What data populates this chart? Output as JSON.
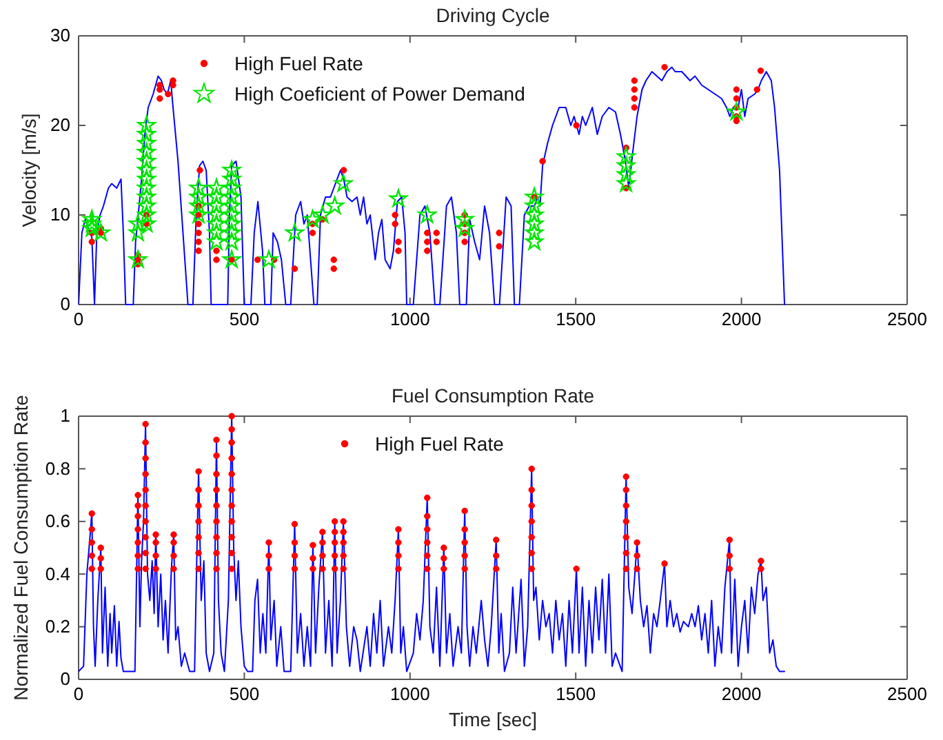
{
  "chart_data": [
    {
      "type": "line",
      "title": "Driving Cycle",
      "ylabel": "Velocity [m/s]",
      "xlim": [
        0,
        2500
      ],
      "xticks": [
        0,
        500,
        1000,
        1500,
        2000,
        2500
      ],
      "ylim": [
        0,
        30
      ],
      "yticks": [
        0,
        10,
        20,
        30
      ],
      "grid": false,
      "legend": "top",
      "series": [
        {
          "color": "#0000ff",
          "x": [
            0,
            10,
            20,
            30,
            40,
            48,
            55,
            65,
            75,
            90,
            100,
            115,
            128,
            135,
            142,
            165,
            172,
            180,
            190,
            200,
            210,
            225,
            240,
            250,
            258,
            268,
            278,
            285,
            300,
            330,
            345,
            355,
            365,
            375,
            385,
            395,
            400,
            450,
            455,
            462,
            475,
            490,
            500,
            520,
            530,
            541,
            555,
            562,
            580,
            587,
            600,
            612,
            625,
            640,
            655,
            670,
            680,
            690,
            700,
            710,
            720,
            730,
            745,
            760,
            775,
            790,
            800,
            810,
            825,
            840,
            850,
            860,
            870,
            880,
            895,
            905,
            915,
            925,
            940,
            950,
            962,
            975,
            985,
            990,
            1010,
            1030,
            1045,
            1060,
            1075,
            1090,
            1110,
            1125,
            1140,
            1150,
            1170,
            1180,
            1195,
            1210,
            1225,
            1240,
            1255,
            1270,
            1290,
            1305,
            1315,
            1330,
            1345,
            1360,
            1375,
            1385,
            1392,
            1400,
            1415,
            1430,
            1450,
            1470,
            1485,
            1495,
            1510,
            1520,
            1530,
            1540,
            1550,
            1565,
            1580,
            1600,
            1620,
            1635,
            1650,
            1660,
            1672,
            1685,
            1700,
            1712,
            1730,
            1745,
            1760,
            1775,
            1790,
            1800,
            1820,
            1845,
            1860,
            1880,
            1900,
            1920,
            1940,
            1955,
            1965,
            1975,
            1990,
            2000,
            2010,
            2020,
            2040,
            2050,
            2060,
            2075,
            2090,
            2100,
            2115,
            2125,
            2130
          ],
          "values": [
            0,
            8,
            9.5,
            8.5,
            7.5,
            0,
            8,
            10,
            11,
            13,
            13.5,
            13,
            14,
            8,
            0,
            0,
            7,
            10,
            14,
            19,
            22,
            23.5,
            25.5,
            25,
            24,
            23.5,
            25,
            22,
            16,
            0,
            0,
            10,
            15.5,
            16,
            15,
            8,
            0,
            0,
            10,
            15.5,
            16,
            12,
            0,
            0,
            8,
            11.5,
            6,
            0,
            0,
            8,
            7,
            5,
            0,
            0,
            10,
            11.5,
            9,
            10,
            5,
            0,
            0,
            10,
            12,
            12,
            13.5,
            15,
            14,
            12,
            11.5,
            12,
            10,
            12,
            9,
            10,
            5,
            8,
            9.5,
            5,
            4,
            6,
            11.5,
            12,
            8,
            0,
            0,
            10,
            11,
            8,
            0,
            0,
            11,
            12,
            8,
            0,
            0,
            9.5,
            7,
            5,
            11,
            8,
            0,
            0,
            12,
            11,
            0,
            0,
            10,
            11,
            11,
            12,
            11,
            15.5,
            18,
            20,
            22,
            22,
            20,
            21,
            19,
            21,
            20,
            21,
            22,
            19,
            21,
            22,
            21.5,
            19,
            16,
            13,
            17,
            21,
            24,
            25,
            26,
            25.5,
            25,
            26,
            26.5,
            26,
            26,
            25,
            25.5,
            24.5,
            24,
            23.5,
            23,
            22,
            21,
            22,
            22,
            24,
            21,
            23,
            23.5,
            24,
            25,
            26,
            25,
            22,
            15,
            5,
            0
          ]
        },
        {
          "type": "scatter",
          "name": "High Fuel Rate",
          "color": "#ff0000",
          "marker": "circle",
          "x": [
            40,
            40,
            67,
            67,
            179,
            179,
            179,
            205,
            205,
            245,
            245,
            245,
            270,
            285,
            285,
            362,
            362,
            362,
            362,
            362,
            362,
            366,
            416,
            416,
            462,
            540,
            590,
            652,
            706,
            706,
            736,
            770,
            770,
            800,
            955,
            955,
            965,
            965,
            1052,
            1052,
            1052,
            1080,
            1080,
            1165,
            1165,
            1165,
            1165,
            1269,
            1269,
            1375,
            1400,
            1502,
            1652,
            1652,
            1677,
            1677,
            1677,
            1677,
            1768,
            1985,
            1985,
            1985,
            1985,
            1985,
            2047,
            2058
          ],
          "values": [
            7,
            8,
            8,
            8.5,
            4.5,
            5,
            5.5,
            9,
            10,
            23,
            24,
            24.5,
            23.5,
            24.5,
            25,
            6,
            7,
            8,
            9,
            10,
            11,
            15,
            5,
            6,
            5,
            5,
            5,
            4,
            8,
            9,
            9.5,
            4,
            5,
            15,
            9,
            10,
            6,
            7,
            6,
            7,
            8,
            7,
            8,
            7,
            8,
            9,
            10,
            6.5,
            8,
            12,
            16,
            20,
            13,
            17.5,
            22,
            23,
            24,
            25,
            26.5,
            20.5,
            21,
            22,
            23,
            24,
            24,
            26.1
          ]
        },
        {
          "type": "scatter",
          "name": "High Coeficient of Power Demand",
          "color": "#00e600",
          "marker": "star",
          "x": [
            40,
            40,
            40,
            67,
            179,
            179,
            179,
            205,
            205,
            205,
            205,
            205,
            205,
            205,
            205,
            205,
            205,
            205,
            205,
            362,
            362,
            362,
            362,
            416,
            416,
            416,
            416,
            416,
            416,
            416,
            462,
            462,
            462,
            462,
            462,
            462,
            462,
            462,
            462,
            462,
            574,
            652,
            706,
            736,
            773,
            799,
            965,
            1052,
            1165,
            1165,
            1375,
            1375,
            1375,
            1375,
            1375,
            1375,
            1652,
            1652,
            1652,
            1652,
            1985
          ],
          "values": [
            8.5,
            9,
            9.5,
            8,
            5,
            8,
            9,
            9,
            10,
            11,
            12,
            13,
            14,
            15,
            16,
            17,
            18,
            19,
            20,
            10,
            11,
            12,
            13,
            7,
            8,
            9,
            10,
            11,
            12,
            13,
            5,
            7,
            8,
            9,
            10,
            11,
            12,
            13,
            14,
            15,
            5,
            8,
            9.5,
            10,
            11,
            13.5,
            11.8,
            10,
            9.5,
            8.5,
            7,
            8,
            9,
            10,
            11,
            12,
            13.5,
            14.5,
            15.5,
            16.5,
            21.5
          ]
        }
      ]
    },
    {
      "type": "line",
      "title": "Fuel Consumption Rate",
      "xlabel": "Time [sec]",
      "ylabel": "Normalized Fuel Consumption Rate",
      "xlim": [
        0,
        2500
      ],
      "xticks": [
        0,
        500,
        1000,
        1500,
        2000,
        2500
      ],
      "ylim": [
        0,
        1
      ],
      "yticks": [
        0,
        0.2,
        0.4,
        0.6,
        0.8,
        1
      ],
      "grid": false,
      "legend": "top",
      "series": [
        {
          "color": "#0000ff",
          "x": [
            0,
            15,
            25,
            35,
            40,
            45,
            50,
            58,
            67,
            72,
            80,
            88,
            95,
            100,
            108,
            115,
            122,
            128,
            135,
            170,
            175,
            179,
            185,
            190,
            196,
            202,
            208,
            215,
            222,
            228,
            233,
            240,
            248,
            255,
            262,
            270,
            280,
            287,
            293,
            300,
            310,
            320,
            335,
            350,
            356,
            362,
            370,
            378,
            385,
            395,
            408,
            416,
            422,
            430,
            440,
            452,
            462,
            468,
            475,
            482,
            490,
            500,
            510,
            525,
            532,
            540,
            548,
            556,
            565,
            574,
            580,
            590,
            598,
            610,
            620,
            640,
            652,
            660,
            670,
            680,
            690,
            700,
            707,
            715,
            725,
            736,
            745,
            755,
            765,
            773,
            780,
            790,
            799,
            808,
            818,
            830,
            840,
            850,
            870,
            880,
            890,
            900,
            910,
            920,
            935,
            945,
            955,
            965,
            972,
            980,
            990,
            1010,
            1020,
            1030,
            1040,
            1052,
            1060,
            1070,
            1080,
            1090,
            1102,
            1110,
            1120,
            1130,
            1145,
            1155,
            1165,
            1172,
            1180,
            1190,
            1200,
            1215,
            1225,
            1235,
            1245,
            1260,
            1268,
            1275,
            1285,
            1300,
            1310,
            1320,
            1335,
            1345,
            1355,
            1367,
            1373,
            1380,
            1390,
            1400,
            1410,
            1420,
            1430,
            1440,
            1450,
            1460,
            1470,
            1480,
            1490,
            1502,
            1510,
            1520,
            1530,
            1540,
            1550,
            1560,
            1570,
            1580,
            1590,
            1600,
            1610,
            1620,
            1640,
            1652,
            1660,
            1670,
            1685,
            1695,
            1705,
            1715,
            1725,
            1735,
            1745,
            1755,
            1768,
            1775,
            1785,
            1795,
            1805,
            1815,
            1825,
            1840,
            1850,
            1860,
            1870,
            1880,
            1890,
            1900,
            1910,
            1920,
            1930,
            1940,
            1950,
            1964,
            1970,
            1980,
            1990,
            2000,
            2010,
            2020,
            2030,
            2040,
            2050,
            2059,
            2065,
            2075,
            2085,
            2095,
            2105,
            2115,
            2130
          ],
          "values": [
            0.03,
            0.05,
            0.4,
            0.55,
            0.635,
            0.2,
            0.05,
            0.3,
            0.5,
            0.1,
            0.35,
            0.05,
            0.25,
            0.1,
            0.28,
            0.05,
            0.22,
            0.08,
            0.03,
            0.03,
            0.4,
            0.7,
            0.2,
            0.45,
            0.6,
            0.97,
            0.4,
            0.3,
            0.45,
            0.25,
            0.55,
            0.2,
            0.4,
            0.15,
            0.3,
            0.1,
            0.42,
            0.55,
            0.15,
            0.2,
            0.05,
            0.1,
            0.03,
            0.03,
            0.42,
            0.79,
            0.3,
            0.45,
            0.1,
            0.03,
            0.1,
            0.91,
            0.3,
            0.1,
            0.03,
            0.3,
            1.0,
            0.5,
            0.3,
            0.45,
            0.2,
            0.05,
            0.03,
            0.03,
            0.3,
            0.38,
            0.1,
            0.25,
            0.1,
            0.52,
            0.15,
            0.3,
            0.05,
            0.2,
            0.03,
            0.03,
            0.59,
            0.1,
            0.25,
            0.05,
            0.2,
            0.05,
            0.51,
            0.1,
            0.35,
            0.56,
            0.1,
            0.3,
            0.05,
            0.6,
            0.1,
            0.3,
            0.6,
            0.2,
            0.05,
            0.2,
            0.15,
            0.03,
            0.2,
            0.05,
            0.25,
            0.1,
            0.3,
            0.05,
            0.2,
            0.1,
            0.3,
            0.57,
            0.1,
            0.2,
            0.03,
            0.1,
            0.25,
            0.15,
            0.3,
            0.69,
            0.2,
            0.1,
            0.35,
            0.05,
            0.5,
            0.1,
            0.25,
            0.05,
            0.2,
            0.1,
            0.64,
            0.2,
            0.05,
            0.2,
            0.1,
            0.3,
            0.15,
            0.05,
            0.2,
            0.53,
            0.1,
            0.25,
            0.03,
            0.1,
            0.35,
            0.1,
            0.38,
            0.05,
            0.2,
            0.8,
            0.3,
            0.35,
            0.15,
            0.3,
            0.2,
            0.25,
            0.1,
            0.3,
            0.15,
            0.25,
            0.05,
            0.3,
            0.1,
            0.42,
            0.1,
            0.35,
            0.05,
            0.3,
            0.1,
            0.35,
            0.15,
            0.38,
            0.1,
            0.4,
            0.05,
            0.1,
            0.03,
            0.77,
            0.35,
            0.25,
            0.52,
            0.3,
            0.2,
            0.28,
            0.1,
            0.25,
            0.2,
            0.3,
            0.44,
            0.2,
            0.3,
            0.2,
            0.25,
            0.18,
            0.22,
            0.2,
            0.25,
            0.2,
            0.28,
            0.15,
            0.25,
            0.1,
            0.3,
            0.05,
            0.2,
            0.1,
            0.35,
            0.53,
            0.1,
            0.38,
            0.05,
            0.2,
            0.3,
            0.1,
            0.35,
            0.25,
            0.4,
            0.45,
            0.3,
            0.35,
            0.1,
            0.15,
            0.05,
            0.03,
            0.03
          ]
        },
        {
          "type": "scatter",
          "name": "High Fuel Rate",
          "color": "#ff0000",
          "marker": "circle",
          "x": [
            40,
            40,
            40,
            40,
            40,
            67,
            67,
            67,
            179,
            179,
            179,
            179,
            179,
            179,
            179,
            202,
            202,
            202,
            202,
            202,
            202,
            202,
            202,
            202,
            202,
            233,
            233,
            233,
            233,
            287,
            287,
            287,
            287,
            362,
            362,
            362,
            362,
            362,
            362,
            362,
            416,
            416,
            416,
            416,
            416,
            416,
            416,
            416,
            416,
            462,
            462,
            462,
            462,
            462,
            462,
            462,
            462,
            462,
            462,
            462,
            574,
            574,
            574,
            652,
            652,
            652,
            652,
            707,
            707,
            707,
            736,
            736,
            736,
            736,
            773,
            773,
            773,
            773,
            773,
            799,
            799,
            799,
            799,
            799,
            965,
            965,
            965,
            965,
            1052,
            1052,
            1052,
            1052,
            1052,
            1052,
            1102,
            1102,
            1102,
            1165,
            1165,
            1165,
            1165,
            1165,
            1260,
            1260,
            1260,
            1367,
            1367,
            1367,
            1367,
            1367,
            1367,
            1367,
            1502,
            1652,
            1652,
            1652,
            1652,
            1652,
            1652,
            1652,
            1685,
            1685,
            1685,
            1768,
            1964,
            1964,
            1964,
            2059,
            2059
          ],
          "values": [
            0.42,
            0.47,
            0.52,
            0.57,
            0.63,
            0.42,
            0.46,
            0.5,
            0.42,
            0.47,
            0.52,
            0.57,
            0.62,
            0.66,
            0.7,
            0.42,
            0.48,
            0.54,
            0.6,
            0.66,
            0.72,
            0.78,
            0.84,
            0.9,
            0.97,
            0.42,
            0.47,
            0.52,
            0.55,
            0.42,
            0.47,
            0.52,
            0.55,
            0.42,
            0.48,
            0.54,
            0.6,
            0.66,
            0.72,
            0.79,
            0.42,
            0.48,
            0.54,
            0.6,
            0.66,
            0.72,
            0.78,
            0.85,
            0.91,
            0.42,
            0.48,
            0.54,
            0.6,
            0.66,
            0.72,
            0.78,
            0.84,
            0.9,
            0.95,
            1.0,
            0.42,
            0.47,
            0.52,
            0.42,
            0.47,
            0.52,
            0.59,
            0.42,
            0.46,
            0.51,
            0.42,
            0.47,
            0.52,
            0.56,
            0.42,
            0.47,
            0.52,
            0.56,
            0.6,
            0.42,
            0.47,
            0.52,
            0.56,
            0.6,
            0.42,
            0.47,
            0.52,
            0.57,
            0.42,
            0.47,
            0.52,
            0.57,
            0.62,
            0.69,
            0.42,
            0.46,
            0.5,
            0.42,
            0.47,
            0.52,
            0.57,
            0.64,
            0.42,
            0.47,
            0.53,
            0.42,
            0.48,
            0.54,
            0.6,
            0.66,
            0.72,
            0.8,
            0.42,
            0.42,
            0.48,
            0.54,
            0.6,
            0.66,
            0.72,
            0.77,
            0.42,
            0.47,
            0.52,
            0.44,
            0.42,
            0.47,
            0.53,
            0.42,
            0.45
          ]
        }
      ]
    }
  ]
}
